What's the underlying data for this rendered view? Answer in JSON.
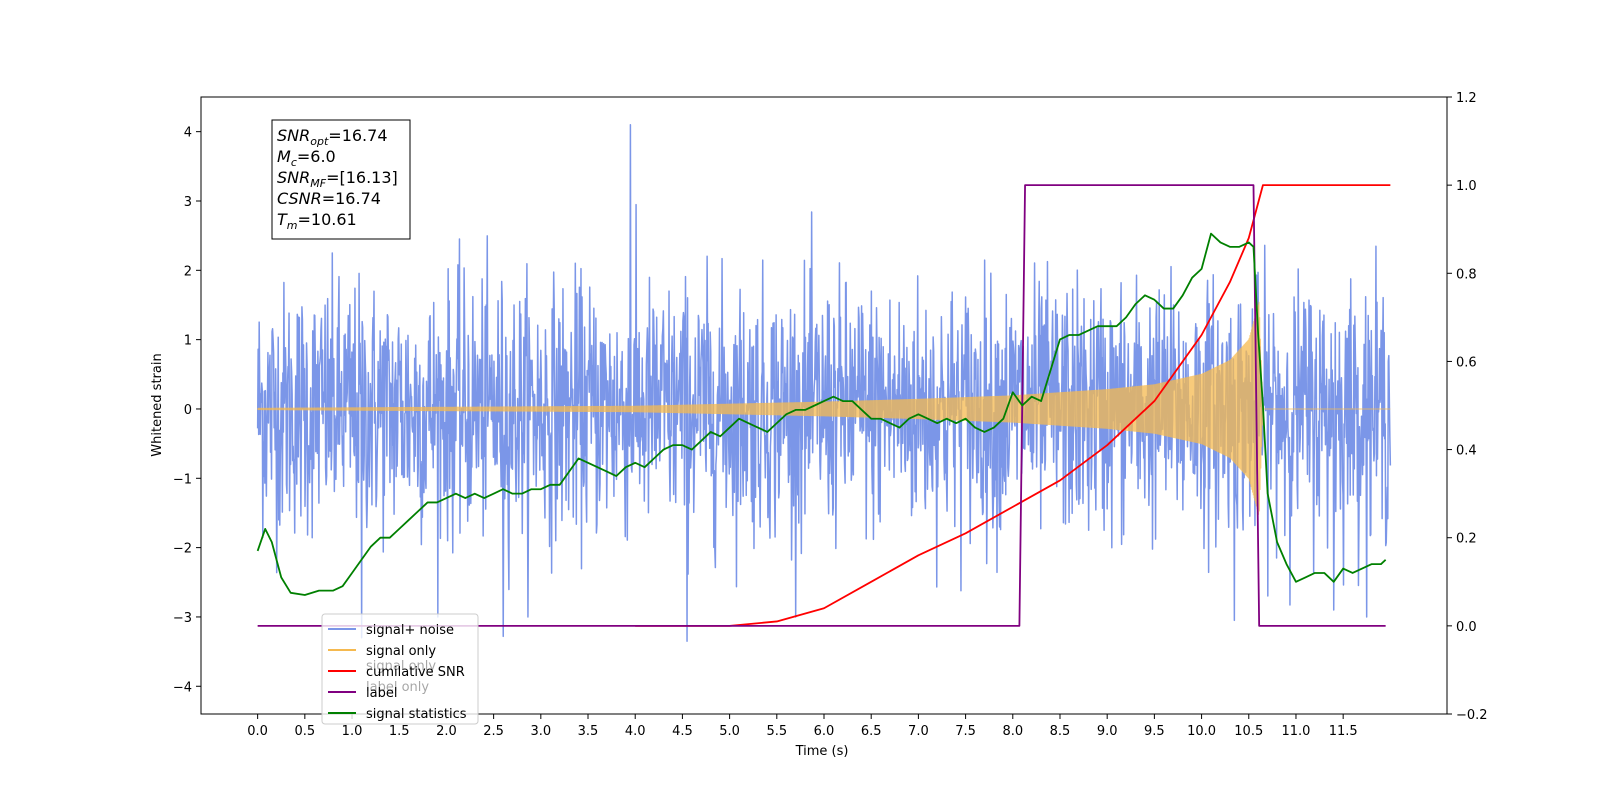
{
  "chart_data": {
    "type": "line",
    "xlabel": "Time (s)",
    "ylabel": "Whitened strain",
    "xlim": [
      -0.6,
      12.6
    ],
    "ylim": [
      -4.4,
      4.5
    ],
    "y2lim": [
      -0.2,
      1.2
    ],
    "x_ticks": [
      "0.0",
      "0.5",
      "1.0",
      "1.5",
      "2.0",
      "2.5",
      "3.0",
      "3.5",
      "4.0",
      "4.5",
      "5.0",
      "5.5",
      "6.0",
      "6.5",
      "7.0",
      "7.5",
      "8.0",
      "8.5",
      "9.0",
      "9.5",
      "10.0",
      "10.5",
      "11.0",
      "11.5"
    ],
    "y_ticks": [
      "4",
      "3",
      "2",
      "1",
      "0",
      "−1",
      "−2",
      "−3",
      "−4"
    ],
    "y2_ticks": [
      "1.2",
      "1.0",
      "0.8",
      "0.6",
      "0.4",
      "0.2",
      "0.0",
      "−0.2"
    ],
    "annotation_lines": [
      {
        "var": "SNR",
        "sub": "opt",
        "value": "=16.74"
      },
      {
        "var": "M",
        "sub": "c",
        "value": "=6.0"
      },
      {
        "var": "SNR",
        "sub": "MF",
        "value": "=[16.13]"
      },
      {
        "var": "CSNR",
        "sub": "",
        "value": "=16.74"
      },
      {
        "var": "T",
        "sub": "m",
        "value": "=10.61"
      }
    ],
    "legend": [
      {
        "label": "signal+ noise",
        "color": "#7b96e8"
      },
      {
        "label": "signal only",
        "color": "#f5b94f"
      },
      {
        "label": "cumilative SNR",
        "color": "#ff0000"
      },
      {
        "label": "label",
        "color": "#800080"
      },
      {
        "label": "signal statistics",
        "color": "#008000"
      }
    ],
    "legend_overlap_texts": [
      "signal only",
      "label only"
    ],
    "legend_placement": "lower-left",
    "series": [
      {
        "name": "signal+ noise",
        "axis": "left",
        "color": "#7b96e8",
        "style": "noise",
        "x_range": [
          0.0,
          12.0
        ],
        "std": 0.9,
        "extremes": [
          [
            3.95,
            4.1
          ],
          [
            4.55,
            -3.35
          ],
          [
            5.55,
            -3.35
          ],
          [
            2.6,
            -3.28
          ],
          [
            1.1,
            -3.3
          ],
          [
            10.35,
            -3.05
          ],
          [
            11.4,
            -2.9
          ]
        ]
      },
      {
        "name": "signal only",
        "axis": "left",
        "color": "#f5b94f",
        "style": "chirp",
        "x_range": [
          0.0,
          12.0
        ],
        "t_merge": 10.61,
        "envelope": [
          [
            0.0,
            0.01
          ],
          [
            4.0,
            0.04
          ],
          [
            5.0,
            0.07
          ],
          [
            6.0,
            0.1
          ],
          [
            7.0,
            0.14
          ],
          [
            8.0,
            0.19
          ],
          [
            9.0,
            0.28
          ],
          [
            9.5,
            0.35
          ],
          [
            10.0,
            0.5
          ],
          [
            10.3,
            0.7
          ],
          [
            10.5,
            1.0
          ],
          [
            10.61,
            1.55
          ],
          [
            10.65,
            0.0
          ],
          [
            12.0,
            0.0
          ]
        ]
      },
      {
        "name": "cumilative SNR",
        "axis": "right",
        "color": "#ff0000",
        "x": [
          4.0,
          5.0,
          5.5,
          6.0,
          6.5,
          7.0,
          7.5,
          8.0,
          8.5,
          9.0,
          9.5,
          10.0,
          10.3,
          10.5,
          10.6,
          10.65,
          12.0
        ],
        "y": [
          0.0,
          0.0,
          0.01,
          0.04,
          0.1,
          0.16,
          0.21,
          0.27,
          0.33,
          0.41,
          0.51,
          0.66,
          0.78,
          0.88,
          0.96,
          1.0,
          1.0
        ]
      },
      {
        "name": "label",
        "axis": "right",
        "color": "#800080",
        "x": [
          0.0,
          8.07,
          8.13,
          10.55,
          10.61,
          11.95
        ],
        "y": [
          0.0,
          0.0,
          1.0,
          1.0,
          0.0,
          0.0
        ]
      },
      {
        "name": "signal statistics",
        "axis": "right",
        "color": "#008000",
        "x": [
          0.0,
          0.08,
          0.15,
          0.25,
          0.35,
          0.5,
          0.65,
          0.8,
          0.9,
          1.0,
          1.1,
          1.2,
          1.3,
          1.4,
          1.5,
          1.6,
          1.7,
          1.8,
          1.9,
          2.0,
          2.1,
          2.2,
          2.3,
          2.4,
          2.5,
          2.6,
          2.7,
          2.8,
          2.9,
          3.0,
          3.1,
          3.2,
          3.3,
          3.4,
          3.5,
          3.6,
          3.7,
          3.8,
          3.9,
          4.0,
          4.1,
          4.2,
          4.3,
          4.4,
          4.5,
          4.6,
          4.7,
          4.8,
          4.9,
          5.0,
          5.1,
          5.2,
          5.3,
          5.4,
          5.5,
          5.6,
          5.7,
          5.8,
          5.9,
          6.0,
          6.1,
          6.2,
          6.3,
          6.4,
          6.5,
          6.6,
          6.7,
          6.8,
          6.9,
          7.0,
          7.1,
          7.2,
          7.3,
          7.4,
          7.5,
          7.6,
          7.7,
          7.8,
          7.9,
          8.0,
          8.1,
          8.2,
          8.3,
          8.4,
          8.5,
          8.6,
          8.7,
          8.8,
          8.9,
          9.0,
          9.1,
          9.2,
          9.3,
          9.4,
          9.5,
          9.6,
          9.7,
          9.8,
          9.9,
          10.0,
          10.1,
          10.2,
          10.3,
          10.4,
          10.5,
          10.55,
          10.6,
          10.65,
          10.7,
          10.8,
          10.9,
          11.0,
          11.1,
          11.2,
          11.3,
          11.4,
          11.5,
          11.6,
          11.7,
          11.8,
          11.9,
          11.95
        ],
        "y": [
          0.17,
          0.22,
          0.19,
          0.11,
          0.075,
          0.07,
          0.08,
          0.08,
          0.09,
          0.12,
          0.15,
          0.18,
          0.2,
          0.2,
          0.22,
          0.24,
          0.26,
          0.28,
          0.28,
          0.29,
          0.3,
          0.29,
          0.3,
          0.29,
          0.3,
          0.31,
          0.3,
          0.3,
          0.31,
          0.31,
          0.32,
          0.32,
          0.35,
          0.38,
          0.37,
          0.36,
          0.35,
          0.34,
          0.36,
          0.37,
          0.36,
          0.38,
          0.4,
          0.41,
          0.41,
          0.4,
          0.42,
          0.44,
          0.43,
          0.45,
          0.47,
          0.46,
          0.45,
          0.44,
          0.46,
          0.48,
          0.49,
          0.49,
          0.5,
          0.51,
          0.52,
          0.51,
          0.51,
          0.49,
          0.47,
          0.47,
          0.46,
          0.45,
          0.47,
          0.48,
          0.47,
          0.46,
          0.47,
          0.46,
          0.47,
          0.45,
          0.44,
          0.45,
          0.47,
          0.53,
          0.5,
          0.52,
          0.51,
          0.58,
          0.65,
          0.66,
          0.66,
          0.67,
          0.68,
          0.68,
          0.68,
          0.7,
          0.73,
          0.75,
          0.74,
          0.72,
          0.72,
          0.75,
          0.79,
          0.81,
          0.89,
          0.87,
          0.86,
          0.86,
          0.87,
          0.86,
          0.66,
          0.5,
          0.3,
          0.19,
          0.14,
          0.1,
          0.11,
          0.12,
          0.12,
          0.1,
          0.13,
          0.12,
          0.13,
          0.14,
          0.14,
          0.15
        ]
      }
    ]
  }
}
